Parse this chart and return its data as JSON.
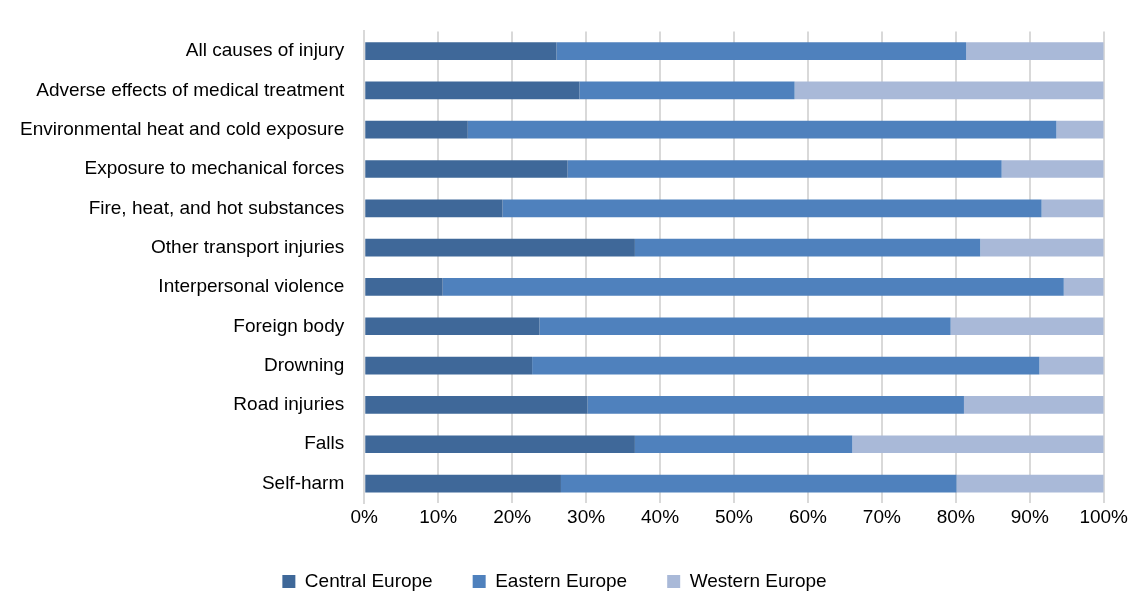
{
  "chart_data": {
    "type": "bar",
    "orientation": "horizontal",
    "stacked": true,
    "categories": [
      "All causes of injury",
      "Adverse effects of medical treatment",
      "Environmental heat and cold exposure",
      "Exposure to mechanical forces",
      "Fire, heat, and hot substances",
      "Other transport injuries",
      "Interpersonal violence",
      "Foreign body",
      "Drowning",
      "Road injuries",
      "Falls",
      "Self-harm"
    ],
    "series": [
      {
        "name": "Central Europe",
        "color": "#3f6899",
        "values": [
          26.0,
          29.1,
          14.0,
          27.5,
          18.7,
          36.6,
          10.6,
          23.7,
          22.7,
          30.2,
          36.6,
          26.6
        ]
      },
      {
        "name": "Eastern Europe",
        "color": "#4f81bd",
        "values": [
          55.4,
          29.1,
          79.6,
          58.7,
          72.9,
          46.7,
          84.0,
          55.6,
          68.6,
          50.9,
          29.4,
          53.5
        ]
      },
      {
        "name": "Western Europe",
        "color": "#a9b9d8",
        "values": [
          18.6,
          41.8,
          6.4,
          13.8,
          8.4,
          16.7,
          5.4,
          20.7,
          8.7,
          18.9,
          34.0,
          19.9
        ]
      }
    ],
    "xlim": [
      0,
      100
    ],
    "xticks": [
      {
        "value": 0,
        "label": "0%"
      },
      {
        "value": 10,
        "label": "10%"
      },
      {
        "value": 20,
        "label": "20%"
      },
      {
        "value": 30,
        "label": "30%"
      },
      {
        "value": 40,
        "label": "40%"
      },
      {
        "value": 50,
        "label": "50%"
      },
      {
        "value": 60,
        "label": "60%"
      },
      {
        "value": 70,
        "label": "70%"
      },
      {
        "value": 80,
        "label": "80%"
      },
      {
        "value": 90,
        "label": "90%"
      },
      {
        "value": 100,
        "label": "100%"
      }
    ],
    "grid": "x",
    "legend": "bottom"
  }
}
